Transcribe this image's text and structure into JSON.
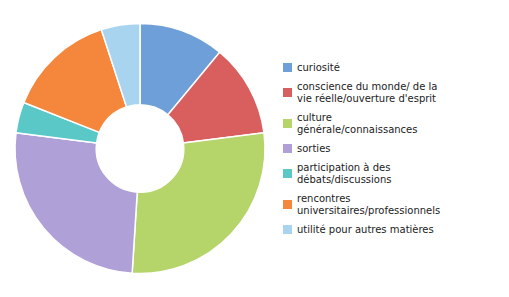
{
  "chart_data": {
    "type": "pie",
    "categories": [
      "curiosité",
      "conscience du monde/ de la\nvie réelle/ouverture d'esprit",
      "culture\ngénérale/connaissances",
      "sorties",
      "participation à des\ndébats/discussions",
      "rencontres\nuniversitaires/professionnels",
      "utilité pour autres matières"
    ],
    "values": [
      11,
      12,
      28,
      26,
      4,
      14,
      5
    ],
    "colors": [
      "#6F9FD8",
      "#D95F5F",
      "#B5D46A",
      "#B0A0D8",
      "#5BC8C8",
      "#F4873C",
      "#A8D4F0"
    ],
    "legend": "right"
  }
}
